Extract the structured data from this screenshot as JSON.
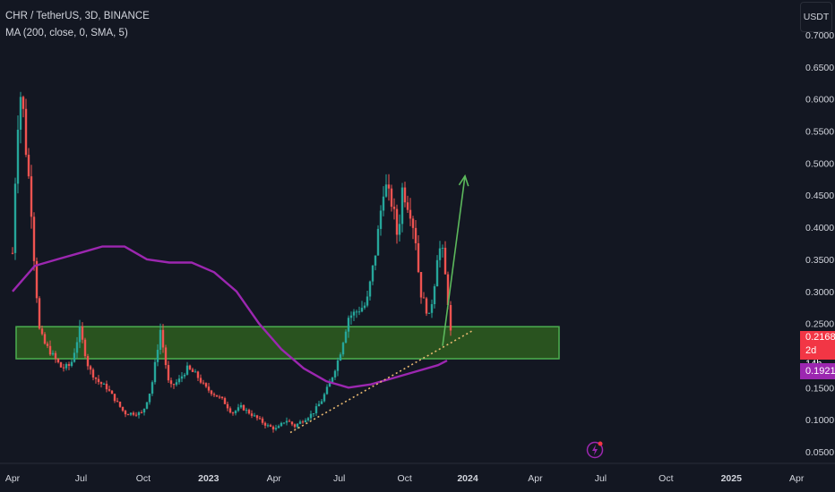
{
  "header": {
    "symbol_line": "CHR / TetherUS, 3D, BINANCE",
    "indicator_line": "MA (200, close, 0, SMA, 5)"
  },
  "currency_button": "USDT",
  "badges": {
    "last_price": "0.2168",
    "countdown": "2d 14h",
    "ma_value": "0.1921"
  },
  "icons": {
    "event": "lightning-icon"
  },
  "colors": {
    "background": "#131722",
    "up": "#26a69a",
    "down": "#ef5350",
    "ma": "#9c27b0",
    "zone_fill": "#2e5e1e",
    "zone_border": "#4caf50",
    "arrow": "#5cb85c",
    "trendline": "#e8b870",
    "last_badge": "#f23645"
  },
  "chart_data": {
    "type": "line",
    "x_tick_labels": [
      "Apr",
      "Jul",
      "Oct",
      "2023",
      "Apr",
      "Jul",
      "Oct",
      "2024",
      "Apr",
      "Jul",
      "Oct",
      "2025",
      "Apr"
    ],
    "y_tick_labels": [
      "0.0500",
      "0.1000",
      "0.1500",
      "0.2000",
      "0.2500",
      "0.3000",
      "0.3500",
      "0.4000",
      "0.4500",
      "0.5000",
      "0.5500",
      "0.6000",
      "0.6500",
      "0.7000"
    ],
    "ylim": [
      0.02,
      0.72
    ],
    "x_index_range": [
      0,
      133
    ],
    "price_series": {
      "name": "CHR / TetherUS",
      "x_index": [
        0,
        1,
        2,
        3,
        4,
        5,
        6,
        7,
        9,
        11,
        13,
        15,
        17,
        19,
        21,
        23,
        25,
        27,
        29,
        31,
        33,
        35,
        37,
        39,
        41,
        43,
        45,
        47,
        49,
        51,
        53,
        55,
        57,
        59,
        61,
        63,
        65,
        67,
        69,
        71,
        73,
        75,
        77,
        79,
        81,
        83,
        84,
        85,
        86,
        87,
        88,
        89,
        90,
        91,
        92,
        93,
        94,
        95,
        96,
        97,
        98
      ],
      "values": [
        0.36,
        0.55,
        0.62,
        0.52,
        0.45,
        0.33,
        0.24,
        0.22,
        0.2,
        0.18,
        0.185,
        0.24,
        0.18,
        0.16,
        0.15,
        0.13,
        0.11,
        0.11,
        0.11,
        0.15,
        0.24,
        0.15,
        0.16,
        0.18,
        0.17,
        0.15,
        0.14,
        0.13,
        0.11,
        0.12,
        0.11,
        0.1,
        0.09,
        0.085,
        0.1,
        0.09,
        0.1,
        0.11,
        0.13,
        0.16,
        0.2,
        0.26,
        0.27,
        0.28,
        0.36,
        0.47,
        0.45,
        0.43,
        0.38,
        0.46,
        0.44,
        0.42,
        0.38,
        0.3,
        0.28,
        0.26,
        0.3,
        0.37,
        0.36,
        0.3,
        0.22
      ]
    },
    "ma_series": {
      "name": "MA (200, close, 0, SMA, 5)",
      "x_index": [
        0,
        5,
        10,
        15,
        20,
        25,
        30,
        35,
        40,
        45,
        50,
        55,
        60,
        65,
        70,
        75,
        80,
        85,
        90,
        95,
        97
      ],
      "values": [
        0.3,
        0.34,
        0.35,
        0.36,
        0.37,
        0.37,
        0.35,
        0.345,
        0.345,
        0.33,
        0.3,
        0.25,
        0.21,
        0.18,
        0.16,
        0.15,
        0.155,
        0.165,
        0.175,
        0.185,
        0.1921
      ]
    },
    "support_zone": {
      "low": 0.195,
      "high": 0.245,
      "x_start": 0,
      "x_end": 122
    },
    "trendline": {
      "x_index": [
        62,
        103
      ],
      "values": [
        0.08,
        0.24
      ]
    },
    "arrow": {
      "x_index": [
        96,
        101
      ],
      "values": [
        0.215,
        0.48
      ]
    },
    "last_price": 0.2168,
    "ma_last": 0.1921
  }
}
